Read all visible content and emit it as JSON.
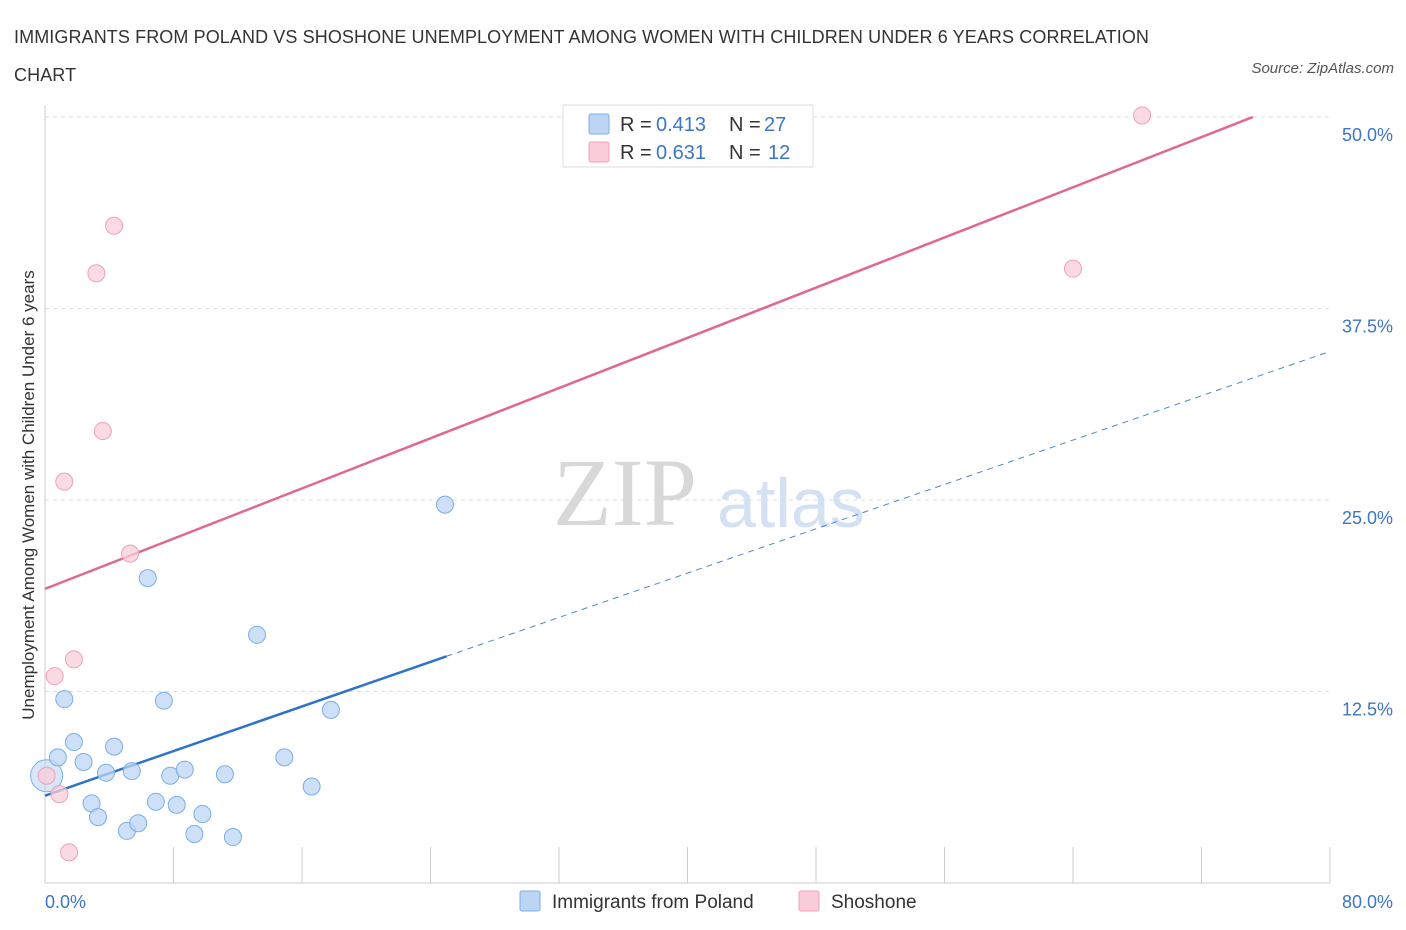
{
  "chart_data": {
    "type": "scatter",
    "title": "IMMIGRANTS FROM POLAND VS SHOSHONE UNEMPLOYMENT AMONG WOMEN WITH CHILDREN UNDER 6 YEARS CORRELATION CHART",
    "source": "Source: ZipAtlas.com",
    "xlabel": "",
    "ylabel": "Unemployment Among Women with Children Under 6 years",
    "xlim": [
      0,
      80
    ],
    "ylim": [
      0,
      50
    ],
    "x_tick_labels": [
      {
        "value": 0,
        "label": "0.0%"
      },
      {
        "value": 80,
        "label": "80.0%"
      }
    ],
    "y_tick_labels": [
      {
        "value": 12.5,
        "label": "12.5%"
      },
      {
        "value": 25,
        "label": "25.0%"
      },
      {
        "value": 37.5,
        "label": "37.5%"
      },
      {
        "value": 50,
        "label": "50.0%"
      }
    ],
    "watermark": {
      "zip": "ZIP",
      "atlas": "atlas"
    },
    "legend": [
      {
        "series": "Immigrants from Poland",
        "r_label": "R =",
        "r_value": "0.413",
        "n_label": "N =",
        "n_value": "27"
      },
      {
        "series": "Shoshone",
        "r_label": "R =",
        "r_value": "0.631",
        "n_label": "N =",
        "n_value": "12"
      }
    ],
    "series": [
      {
        "name": "Immigrants from Poland",
        "color": "#7aaee8",
        "fill": "#bcd5f5",
        "line_color": "#2f72cc",
        "trend": {
          "x0": 0,
          "y0": 5.7,
          "x1": 25,
          "y1": 14.8,
          "dash_to_x": 80,
          "dash_to_y": 34.7
        },
        "points": [
          {
            "x": 0.1,
            "y": 7.0,
            "size": "large"
          },
          {
            "x": 0.8,
            "y": 8.2
          },
          {
            "x": 1.2,
            "y": 12.0
          },
          {
            "x": 1.8,
            "y": 9.2
          },
          {
            "x": 2.4,
            "y": 7.9
          },
          {
            "x": 2.9,
            "y": 5.2
          },
          {
            "x": 3.3,
            "y": 4.3
          },
          {
            "x": 3.8,
            "y": 7.2
          },
          {
            "x": 4.3,
            "y": 8.9
          },
          {
            "x": 5.1,
            "y": 3.4
          },
          {
            "x": 5.4,
            "y": 7.3
          },
          {
            "x": 5.8,
            "y": 3.9
          },
          {
            "x": 6.4,
            "y": 19.9
          },
          {
            "x": 6.9,
            "y": 5.3
          },
          {
            "x": 7.4,
            "y": 11.9
          },
          {
            "x": 7.8,
            "y": 7.0
          },
          {
            "x": 8.2,
            "y": 5.1
          },
          {
            "x": 8.7,
            "y": 7.4
          },
          {
            "x": 9.3,
            "y": 3.2
          },
          {
            "x": 9.8,
            "y": 4.5
          },
          {
            "x": 11.2,
            "y": 7.1
          },
          {
            "x": 11.7,
            "y": 3.0
          },
          {
            "x": 13.2,
            "y": 16.2
          },
          {
            "x": 14.9,
            "y": 8.2
          },
          {
            "x": 16.6,
            "y": 6.3
          },
          {
            "x": 17.8,
            "y": 11.3
          },
          {
            "x": 24.9,
            "y": 24.7
          }
        ]
      },
      {
        "name": "Shoshone",
        "color": "#f0a0b8",
        "fill": "#f8cdd9",
        "line_color": "#e06890",
        "trend": {
          "x0": 0,
          "y0": 19.2,
          "x1": 75.2,
          "y1": 50.0
        },
        "points": [
          {
            "x": 0.1,
            "y": 7.0
          },
          {
            "x": 0.6,
            "y": 13.5
          },
          {
            "x": 0.9,
            "y": 5.8
          },
          {
            "x": 1.2,
            "y": 26.2
          },
          {
            "x": 1.5,
            "y": 2.0
          },
          {
            "x": 1.8,
            "y": 14.6
          },
          {
            "x": 3.2,
            "y": 39.8
          },
          {
            "x": 3.6,
            "y": 29.5
          },
          {
            "x": 4.3,
            "y": 42.9
          },
          {
            "x": 5.3,
            "y": 21.5
          },
          {
            "x": 64.0,
            "y": 40.1
          },
          {
            "x": 68.3,
            "y": 50.1
          }
        ]
      }
    ]
  }
}
